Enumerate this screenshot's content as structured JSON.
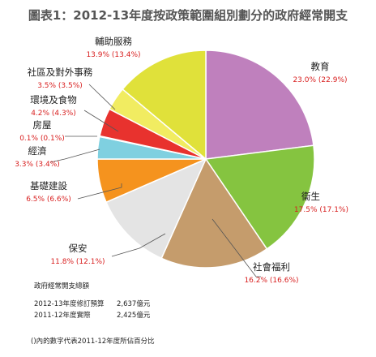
{
  "title": "圖表1：2012-13年度按政策範圍組別劃分的政府經常開支",
  "chart_data": {
    "type": "pie",
    "title": "圖表1：2012-13年度按政策範圍組別劃分的政府經常開支",
    "slices": [
      {
        "label": "教育",
        "value": 23.0,
        "value_text": "23.0% (22.9%)",
        "color": "#bf80bd"
      },
      {
        "label": "衞生",
        "value": 17.5,
        "value_text": "17.5% (17.1%)",
        "color": "#85c440"
      },
      {
        "label": "社會福利",
        "value": 16.2,
        "value_text": "16.2% (16.6%)",
        "color": "#c59c6c"
      },
      {
        "label": "保安",
        "value": 11.8,
        "value_text": "11.8% (12.1%)",
        "color": "#e4e4e4"
      },
      {
        "label": "基礎建設",
        "value": 6.5,
        "value_text": "6.5% (6.6%)",
        "color": "#f5931e"
      },
      {
        "label": "經濟",
        "value": 3.3,
        "value_text": "3.3% (3.4%)",
        "color": "#7fd0e0"
      },
      {
        "label": "房屋",
        "value": 0.1,
        "value_text": "0.1% (0.1%)",
        "color": "#3a6fb5"
      },
      {
        "label": "環境及食物",
        "value": 4.2,
        "value_text": "4.2% (4.3%)",
        "color": "#e8322e"
      },
      {
        "label": "社區及對外事務",
        "value": 3.5,
        "value_text": "3.5% (3.5%)",
        "color": "#f1ec61"
      },
      {
        "label": "輔助服務",
        "value": 13.9,
        "value_text": "13.9% (13.4%)",
        "color": "#e0e13a"
      }
    ]
  },
  "totals": {
    "heading": "政府經常開支總額",
    "rows": [
      {
        "label": "2012-13年度修訂預算",
        "value": "2,637億元"
      },
      {
        "label": "2011-12年度實際",
        "value": "2,425億元"
      }
    ]
  },
  "footnote": "()內的數字代表2011-12年度所佔百分比"
}
